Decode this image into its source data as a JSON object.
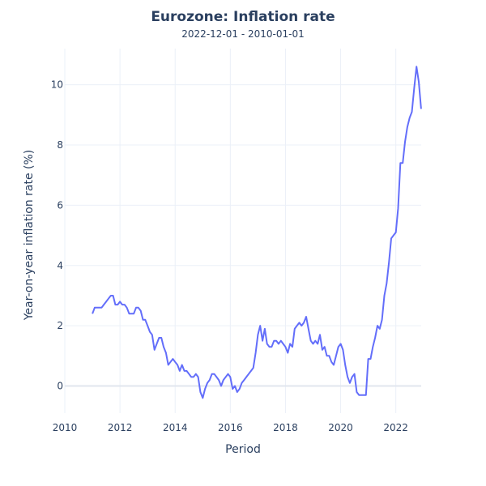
{
  "chart_data": {
    "type": "line",
    "title": "Eurozone: Inflation rate",
    "subtitle": "2022-12-01 - 2010-01-01",
    "xlabel": "Period",
    "ylabel": "Year-on-year inflation rate (%)",
    "xlim": [
      2010,
      2022.92
    ],
    "ylim": [
      -0.9,
      11.2
    ],
    "x_ticks": [
      "2010",
      "2012",
      "2014",
      "2016",
      "2018",
      "2020",
      "2022"
    ],
    "y_ticks": [
      "0",
      "2",
      "4",
      "6",
      "8",
      "10"
    ],
    "grid": true,
    "line_color": "#636efa",
    "series": [
      {
        "x": [
          "2011-01",
          "2011-02",
          "2011-03",
          "2011-04",
          "2011-05",
          "2011-06",
          "2011-07",
          "2011-08",
          "2011-09",
          "2011-10",
          "2011-11",
          "2011-12",
          "2012-01",
          "2012-02",
          "2012-03",
          "2012-04",
          "2012-05",
          "2012-06",
          "2012-07",
          "2012-08",
          "2012-09",
          "2012-10",
          "2012-11",
          "2012-12",
          "2013-01",
          "2013-02",
          "2013-03",
          "2013-04",
          "2013-05",
          "2013-06",
          "2013-07",
          "2013-08",
          "2013-09",
          "2013-10",
          "2013-11",
          "2013-12",
          "2014-01",
          "2014-02",
          "2014-03",
          "2014-04",
          "2014-05",
          "2014-06",
          "2014-07",
          "2014-08",
          "2014-09",
          "2014-10",
          "2014-11",
          "2014-12",
          "2015-01",
          "2015-02",
          "2015-03",
          "2015-04",
          "2015-05",
          "2015-06",
          "2015-07",
          "2015-08",
          "2015-09",
          "2015-10",
          "2015-11",
          "2015-12",
          "2016-01",
          "2016-02",
          "2016-03",
          "2016-04",
          "2016-05",
          "2016-06",
          "2016-07",
          "2016-08",
          "2016-09",
          "2016-10",
          "2016-11",
          "2016-12",
          "2017-01",
          "2017-02",
          "2017-03",
          "2017-04",
          "2017-05",
          "2017-06",
          "2017-07",
          "2017-08",
          "2017-09",
          "2017-10",
          "2017-11",
          "2017-12",
          "2018-01",
          "2018-02",
          "2018-03",
          "2018-04",
          "2018-05",
          "2018-06",
          "2018-07",
          "2018-08",
          "2018-09",
          "2018-10",
          "2018-11",
          "2018-12",
          "2019-01",
          "2019-02",
          "2019-03",
          "2019-04",
          "2019-05",
          "2019-06",
          "2019-07",
          "2019-08",
          "2019-09",
          "2019-10",
          "2019-11",
          "2019-12",
          "2020-01",
          "2020-02",
          "2020-03",
          "2020-04",
          "2020-05",
          "2020-06",
          "2020-07",
          "2020-08",
          "2020-09",
          "2020-10",
          "2020-11",
          "2020-12",
          "2021-01",
          "2021-02",
          "2021-03",
          "2021-04",
          "2021-05",
          "2021-06",
          "2021-07",
          "2021-08",
          "2021-09",
          "2021-10",
          "2021-11",
          "2021-12",
          "2022-01",
          "2022-02",
          "2022-03",
          "2022-04",
          "2022-05",
          "2022-06",
          "2022-07",
          "2022-08",
          "2022-09",
          "2022-10",
          "2022-11",
          "2022-12"
        ],
        "values": [
          2.4,
          2.6,
          2.6,
          2.6,
          2.6,
          2.7,
          2.8,
          2.9,
          3.0,
          3.0,
          2.7,
          2.7,
          2.8,
          2.7,
          2.7,
          2.6,
          2.4,
          2.4,
          2.4,
          2.6,
          2.6,
          2.5,
          2.2,
          2.2,
          2.0,
          1.8,
          1.7,
          1.2,
          1.4,
          1.6,
          1.6,
          1.3,
          1.1,
          0.7,
          0.8,
          0.9,
          0.8,
          0.7,
          0.5,
          0.7,
          0.5,
          0.5,
          0.4,
          0.3,
          0.3,
          0.4,
          0.3,
          -0.2,
          -0.4,
          -0.1,
          0.1,
          0.2,
          0.4,
          0.4,
          0.3,
          0.2,
          0.0,
          0.2,
          0.3,
          0.4,
          0.3,
          -0.1,
          0.0,
          -0.2,
          -0.1,
          0.1,
          0.2,
          0.3,
          0.4,
          0.5,
          0.6,
          1.1,
          1.7,
          2.0,
          1.5,
          1.9,
          1.4,
          1.3,
          1.3,
          1.5,
          1.5,
          1.4,
          1.5,
          1.4,
          1.3,
          1.1,
          1.4,
          1.3,
          1.9,
          2.0,
          2.1,
          2.0,
          2.1,
          2.3,
          1.9,
          1.5,
          1.4,
          1.5,
          1.4,
          1.7,
          1.2,
          1.3,
          1.0,
          1.0,
          0.8,
          0.7,
          1.0,
          1.3,
          1.4,
          1.2,
          0.7,
          0.3,
          0.1,
          0.3,
          0.4,
          -0.2,
          -0.3,
          -0.3,
          -0.3,
          -0.3,
          0.9,
          0.9,
          1.3,
          1.6,
          2.0,
          1.9,
          2.2,
          3.0,
          3.4,
          4.1,
          4.9,
          5.0,
          5.1,
          5.9,
          7.4,
          7.4,
          8.1,
          8.6,
          8.9,
          9.1,
          9.9,
          10.6,
          10.1,
          9.2
        ]
      }
    ]
  }
}
